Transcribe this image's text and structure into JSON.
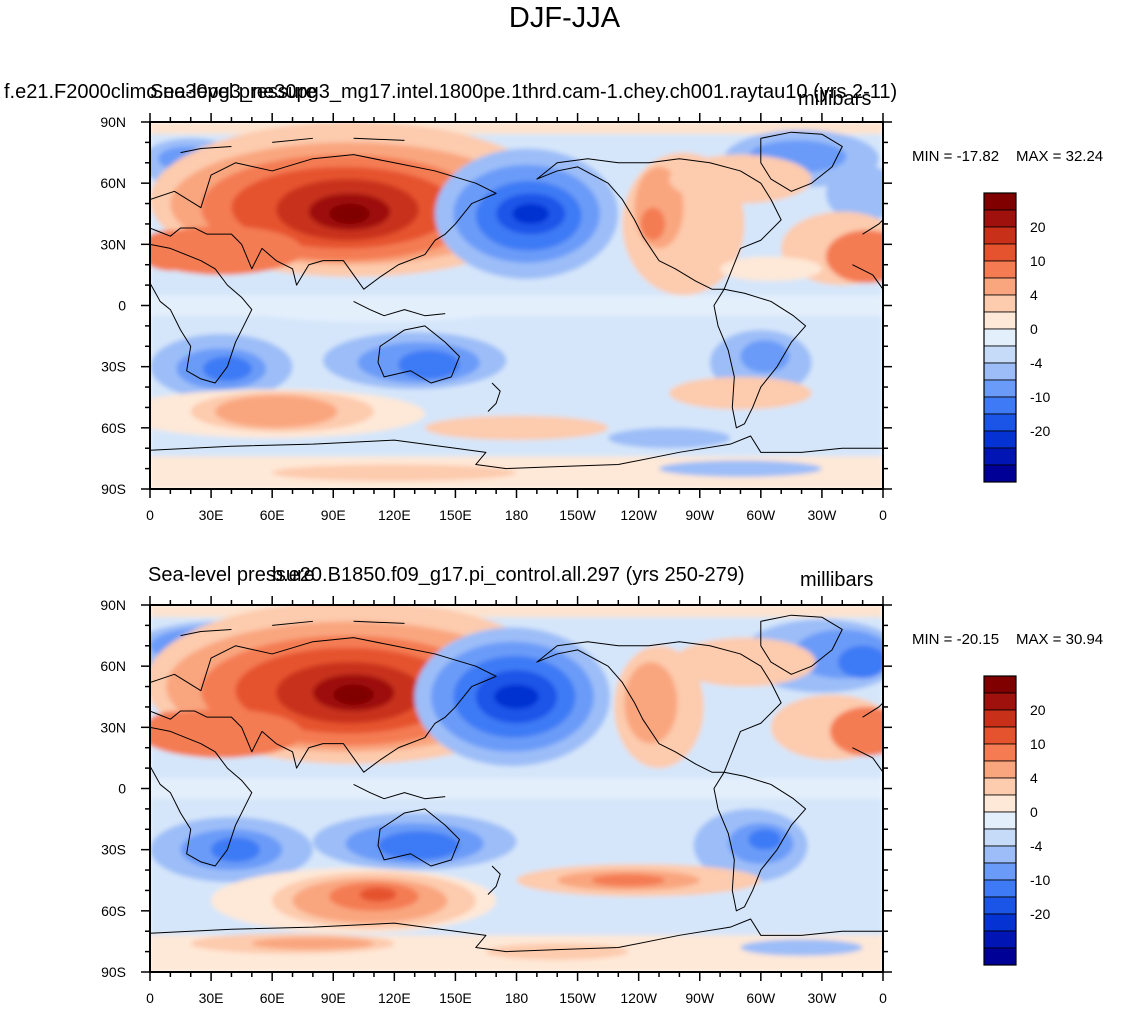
{
  "main_title": "DJF-JJA",
  "colorbar": {
    "colors": [
      "#000096",
      "#0015b4",
      "#0532d2",
      "#1a55e8",
      "#3e7af5",
      "#6b9bf8",
      "#9cbdf8",
      "#c6dbf8",
      "#e4effc",
      "#fee8d7",
      "#fdcbad",
      "#f9a67f",
      "#f47b52",
      "#e5522e",
      "#c8301a",
      "#9e110d",
      "#800000"
    ],
    "tick_labels": [
      "20",
      "10",
      "4",
      "0",
      "-4",
      "-10",
      "-20"
    ]
  },
  "axes": {
    "lon_labels": [
      "0",
      "30E",
      "60E",
      "90E",
      "120E",
      "150E",
      "180",
      "150W",
      "120W",
      "90W",
      "60W",
      "30W",
      "0"
    ],
    "lat_labels": [
      "90N",
      "60N",
      "30N",
      "0",
      "30S",
      "60S",
      "90S"
    ]
  },
  "chart_data": [
    {
      "type": "heatmap",
      "left_title": "f.e21.F2000climo.ne30pg3_ne30pg3_mg17.intel.1800pe.1thrd.cam-1.chey.ch001.raytau10 (yrs 2-11)",
      "center_title": "Sea-level pressure",
      "units": "millibars",
      "min_label": "MIN = -17.82",
      "max_label": "MAX =  32.24",
      "variable": "Sea-level pressure",
      "season_difference": "DJF-JJA",
      "x_range": [
        0,
        360
      ],
      "y_range": [
        -90,
        90
      ],
      "levels": [
        -30,
        -20,
        -15,
        -10,
        -7,
        -4,
        -2,
        -1,
        0,
        1,
        2,
        4,
        7,
        10,
        15,
        20,
        30
      ],
      "min": -17.82,
      "max": 32.24
    },
    {
      "type": "heatmap",
      "left_title": "Sea-level pressure",
      "center_title": "b.e20.B1850.f09_g17.pi_control.all.297 (yrs 250-279)",
      "units": "millibars",
      "min_label": "MIN = -20.15",
      "max_label": "MAX =  30.94",
      "variable": "Sea-level pressure",
      "season_difference": "DJF-JJA",
      "x_range": [
        0,
        360
      ],
      "y_range": [
        -90,
        90
      ],
      "levels": [
        -30,
        -20,
        -15,
        -10,
        -7,
        -4,
        -2,
        -1,
        0,
        1,
        2,
        4,
        7,
        10,
        15,
        20,
        30
      ],
      "min": -20.15,
      "max": 30.94
    }
  ]
}
